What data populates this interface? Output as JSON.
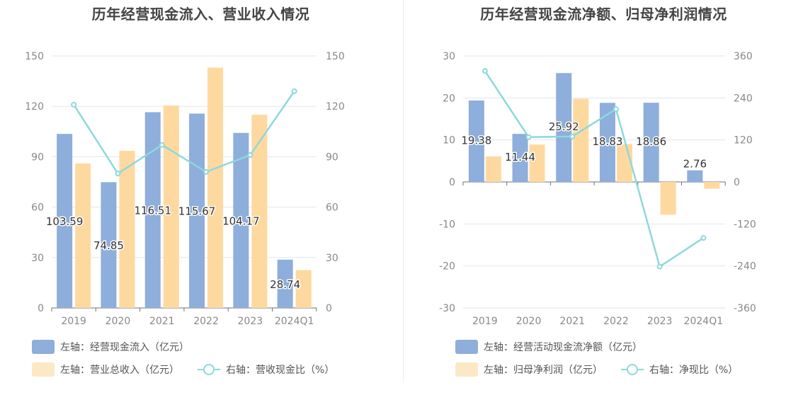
{
  "chart_data": [
    {
      "type": "bar",
      "title": "历年经营现金流入、营业收入情况",
      "categories": [
        "2019",
        "2020",
        "2021",
        "2022",
        "2023",
        "2024Q1"
      ],
      "left_axis": {
        "ylim": [
          0,
          150
        ],
        "ticks": [
          "0",
          "30",
          "60",
          "90",
          "120",
          "150"
        ]
      },
      "right_axis": {
        "ylim": [
          0,
          150
        ],
        "ticks": [
          "0",
          "30",
          "60",
          "90",
          "120",
          "150"
        ]
      },
      "series": [
        {
          "name": "左轴：经营现金流入（亿元）",
          "kind": "bar",
          "axis": "left",
          "color": "#8eaedb",
          "values": [
            103.59,
            74.85,
            116.51,
            115.67,
            104.17,
            28.74
          ],
          "labels": [
            "103.59",
            "74.85",
            "116.51",
            "115.67",
            "104.17",
            "28.74"
          ]
        },
        {
          "name": "左轴：营业总收入（亿元）",
          "kind": "bar",
          "axis": "left",
          "color": "#fed99f",
          "values": [
            86,
            93.5,
            120.5,
            143,
            115,
            22.5
          ]
        },
        {
          "name": "右轴：营收现金比（%）",
          "kind": "line",
          "axis": "right",
          "color": "#8ed8dc",
          "values": [
            121,
            80,
            97,
            81,
            91,
            129
          ]
        }
      ],
      "legend": [
        {
          "label": "左轴：经营现金流入（亿元）",
          "type": "bar",
          "color": "#8eaedb"
        },
        {
          "label": "左轴：营业总收入（亿元）",
          "type": "bar",
          "color": "#fde8c6"
        },
        {
          "label": "右轴：营收现金比（%）",
          "type": "line",
          "color": "#8ed8dc"
        }
      ]
    },
    {
      "type": "bar",
      "title": "历年经营现金流净额、归母净利润情况",
      "categories": [
        "2019",
        "2020",
        "2021",
        "2022",
        "2023",
        "2024Q1"
      ],
      "left_axis": {
        "ylim": [
          -30,
          30
        ],
        "ticks": [
          "-30",
          "-20",
          "-10",
          "0",
          "10",
          "20",
          "30"
        ]
      },
      "right_axis": {
        "ylim": [
          -360,
          360
        ],
        "ticks": [
          "-360",
          "-240",
          "-120",
          "0",
          "120",
          "240",
          "360"
        ]
      },
      "series": [
        {
          "name": "左轴：经营活动现金流净额（亿元）",
          "kind": "bar",
          "axis": "left",
          "color": "#8eaedb",
          "values": [
            19.38,
            11.44,
            25.92,
            18.83,
            18.86,
            2.76
          ],
          "labels": [
            "19.38",
            "11.44",
            "25.92",
            "18.83",
            "18.86",
            "2.76"
          ]
        },
        {
          "name": "左轴：归母净利润（亿元）",
          "kind": "bar",
          "axis": "left",
          "color": "#fed99f",
          "values": [
            6.1,
            8.9,
            19.8,
            9.0,
            -7.8,
            -1.6
          ]
        },
        {
          "name": "右轴：净现比（%）",
          "kind": "line",
          "axis": "right",
          "color": "#8ed8dc",
          "values": [
            317,
            128,
            130,
            208,
            -242,
            -160
          ]
        }
      ],
      "legend": [
        {
          "label": "左轴：经营活动现金流净额（亿元）",
          "type": "bar",
          "color": "#8eaedb"
        },
        {
          "label": "左轴：归母净利润（亿元）",
          "type": "bar",
          "color": "#fde8c6"
        },
        {
          "label": "右轴：净现比（%）",
          "type": "line",
          "color": "#8ed8dc"
        }
      ]
    }
  ]
}
